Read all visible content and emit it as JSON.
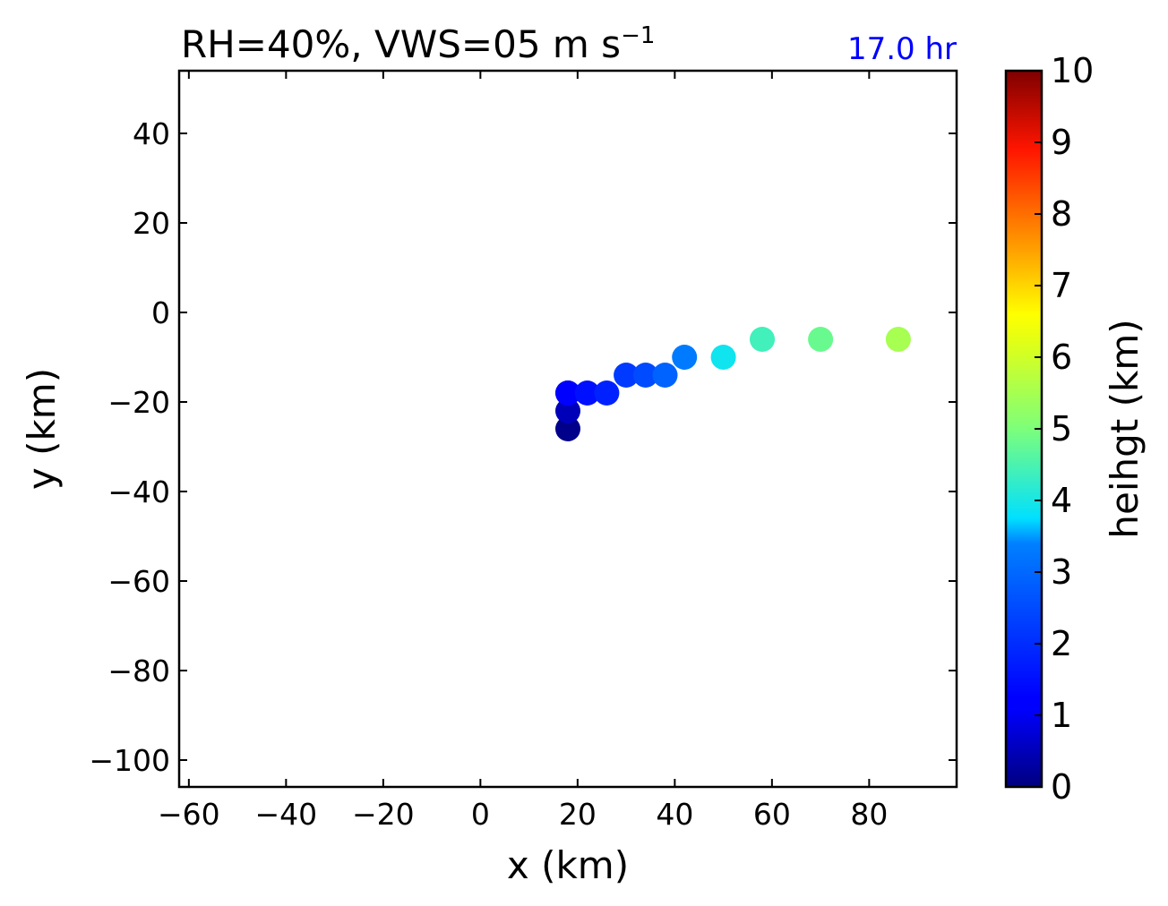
{
  "chart_data": {
    "type": "scatter",
    "title": "RH=40%, VWS=05 m s",
    "title_superscript": "−1",
    "time_label": "17.0 hr",
    "time_color": "#0000ff",
    "xlabel": "x (km)",
    "ylabel": "y (km)",
    "xlim": [
      -62,
      98
    ],
    "ylim": [
      -106,
      54
    ],
    "xticks": [
      -60,
      -40,
      -20,
      0,
      20,
      40,
      60,
      80
    ],
    "xtick_labels": [
      "−60",
      "−40",
      "−20",
      "0",
      "20",
      "40",
      "60",
      "80"
    ],
    "yticks": [
      40,
      20,
      0,
      -20,
      -40,
      -60,
      -80,
      -100
    ],
    "ytick_labels": [
      "40",
      "20",
      "0",
      "−20",
      "−40",
      "−60",
      "−80",
      "−100"
    ],
    "colormap": "jet",
    "colorbar": {
      "label": "heihgt (km)",
      "range": [
        0,
        10
      ],
      "ticks": [
        0,
        1,
        2,
        3,
        4,
        5,
        6,
        7,
        8,
        9,
        10
      ],
      "tick_labels": [
        "0",
        "1",
        "2",
        "3",
        "4",
        "5",
        "6",
        "7",
        "8",
        "9",
        "10"
      ]
    },
    "points": [
      {
        "x": 18,
        "y": -26,
        "z": 0.1
      },
      {
        "x": 18,
        "y": -22,
        "z": 0.5
      },
      {
        "x": 18,
        "y": -18,
        "z": 1.1
      },
      {
        "x": 18,
        "y": -18,
        "z": 1.2
      },
      {
        "x": 22,
        "y": -18,
        "z": 1.5
      },
      {
        "x": 26,
        "y": -18,
        "z": 1.8
      },
      {
        "x": 30,
        "y": -14,
        "z": 2.2
      },
      {
        "x": 34,
        "y": -14,
        "z": 2.5
      },
      {
        "x": 38,
        "y": -14,
        "z": 2.9
      },
      {
        "x": 42,
        "y": -10,
        "z": 3.3
      },
      {
        "x": 50,
        "y": -10,
        "z": 3.9
      },
      {
        "x": 58,
        "y": -6,
        "z": 4.4
      },
      {
        "x": 70,
        "y": -6,
        "z": 4.8
      },
      {
        "x": 86,
        "y": -6,
        "z": 5.5
      }
    ]
  }
}
